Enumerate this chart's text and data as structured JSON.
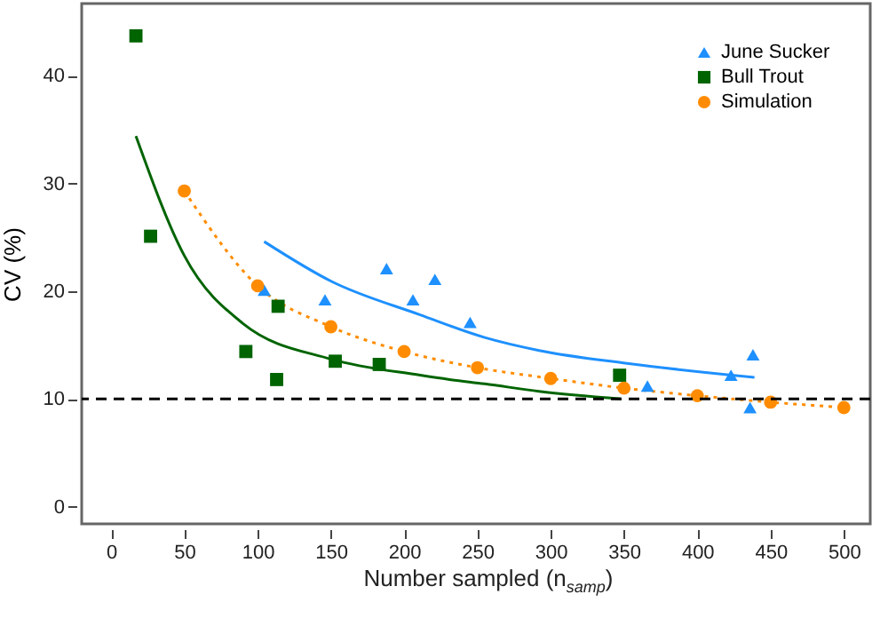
{
  "chart_data": {
    "type": "scatter",
    "xlabel": "Number sampled (n$_{samp}$)",
    "ylabel": "CV (%)",
    "xlim": [
      -20,
      518
    ],
    "ylim": [
      -1.6,
      46.7
    ],
    "xticks": [
      0,
      50,
      100,
      150,
      200,
      250,
      300,
      350,
      400,
      450,
      500
    ],
    "yticks": [
      0,
      10,
      20,
      30,
      40
    ],
    "grid": false,
    "legend": "top right",
    "ref_lines": [
      {
        "axis": "y",
        "value": 10,
        "color": "#000000",
        "line_style": "dashed"
      }
    ],
    "series": [
      {
        "name": "June Sucker",
        "type": "scatter",
        "marker": "triangle",
        "color": "#1e90ff",
        "x": [
          104.5,
          146,
          188,
          206,
          221,
          245,
          366,
          423,
          436,
          438
        ],
        "values": [
          20.1,
          19.2,
          22.1,
          19.2,
          21.1,
          17.1,
          11.2,
          12.2,
          9.2,
          14.1
        ]
      },
      {
        "name": "Bull Trout",
        "type": "scatter",
        "marker": "square",
        "color": "#006400",
        "x": [
          17,
          27,
          92,
          113,
          114,
          153,
          183,
          347
        ],
        "values": [
          43.7,
          25.1,
          14.4,
          11.8,
          18.6,
          13.5,
          13.2,
          12.2
        ]
      },
      {
        "name": "Simulation",
        "type": "line",
        "marker": "circle",
        "line_style": "dotted",
        "color": "#ff8c00",
        "x": [
          50,
          100,
          150,
          200,
          250,
          300,
          350,
          400,
          450,
          500
        ],
        "values": [
          29.3,
          20.5,
          16.7,
          14.4,
          12.9,
          11.9,
          11.0,
          10.3,
          9.7,
          9.2
        ]
      },
      {
        "type": "line",
        "marker": "none",
        "line_style": "solid",
        "color": "#1e90ff",
        "x": [
          104.5,
          150.5,
          211,
          255,
          292,
          352,
          439
        ],
        "values": [
          24.6,
          20.9,
          17.8,
          15.7,
          14.5,
          13.3,
          12.0
        ]
      },
      {
        "type": "line",
        "marker": "none",
        "line_style": "solid",
        "color": "#006400",
        "x": [
          17,
          50,
          90,
          150,
          211,
          231,
          255,
          292,
          348
        ],
        "values": [
          34.4,
          23.3,
          17.0,
          13.7,
          12.2,
          11.8,
          11.4,
          10.7,
          10.0
        ]
      }
    ]
  }
}
